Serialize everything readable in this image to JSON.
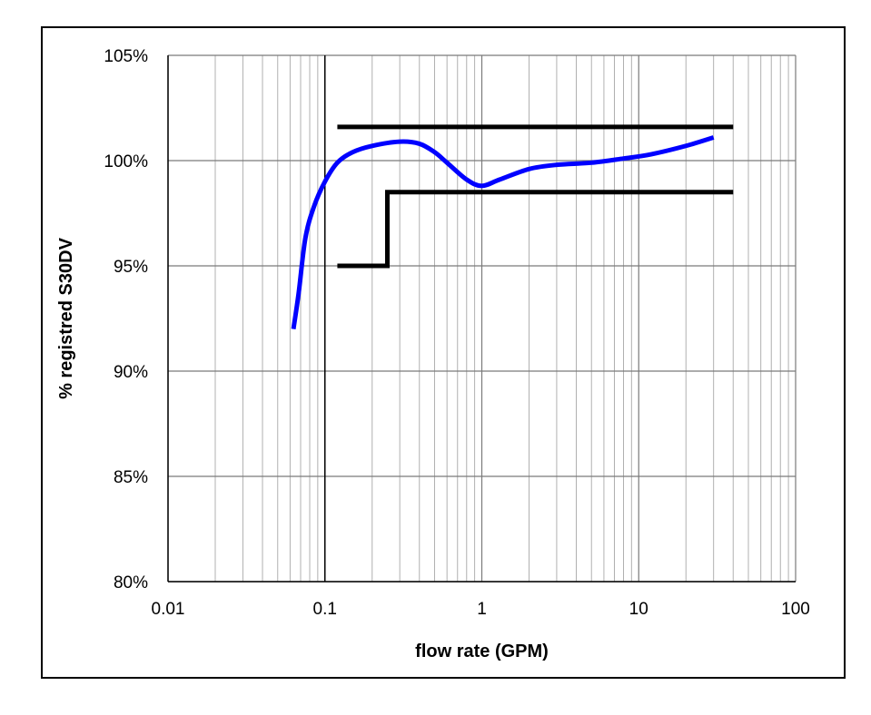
{
  "chart_data": {
    "type": "line",
    "title": "",
    "xlabel": "flow rate (GPM)",
    "ylabel": "% registred S30DV",
    "x_scale": "log",
    "xlim": [
      0.01,
      100
    ],
    "ylim": [
      80,
      105
    ],
    "x_ticks": [
      "0.01",
      "0.1",
      "1",
      "10",
      "100"
    ],
    "y_ticks": [
      "80%",
      "85%",
      "90%",
      "95%",
      "100%",
      "105%"
    ],
    "grid": true,
    "legend": "none",
    "series": [
      {
        "color": "#0000ff",
        "x": [
          0.063,
          0.068,
          0.075,
          0.085,
          0.1,
          0.12,
          0.15,
          0.2,
          0.3,
          0.4,
          0.5,
          0.6,
          0.8,
          1.0,
          1.3,
          2.0,
          3.0,
          5.0,
          8.0,
          12.0,
          20.0,
          30.0
        ],
        "y": [
          92.0,
          93.7,
          96.3,
          97.8,
          99.0,
          99.9,
          100.4,
          100.7,
          100.9,
          100.8,
          100.4,
          99.9,
          99.1,
          98.8,
          99.1,
          99.6,
          99.8,
          99.9,
          100.1,
          100.3,
          100.7,
          101.1
        ]
      },
      {
        "color": "#000000",
        "x": [
          0.12,
          40
        ],
        "y": [
          101.6,
          101.6
        ]
      },
      {
        "color": "#000000",
        "x": [
          0.12,
          0.25,
          0.25,
          40
        ],
        "y": [
          95.0,
          95.0,
          98.5,
          98.5
        ]
      }
    ]
  }
}
